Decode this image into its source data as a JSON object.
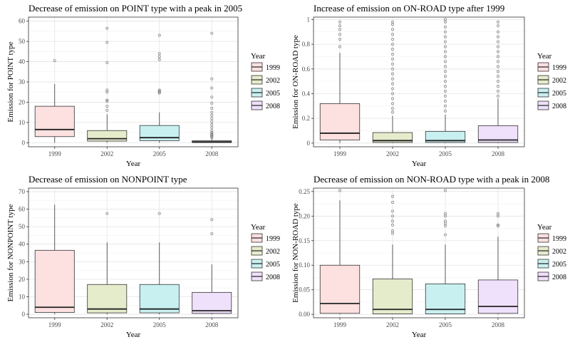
{
  "chart_data": [
    {
      "type": "box",
      "title": "Decrease of emission on POINT type with a peak in 2005",
      "xlabel": "Year",
      "ylabel": "Emission for POINT type",
      "categories": [
        "1999",
        "2002",
        "2005",
        "2008"
      ],
      "ylim": [
        -2,
        62
      ],
      "yticks": [
        0,
        10,
        20,
        30,
        40,
        50,
        60
      ],
      "boxes": [
        {
          "q1": 3,
          "median": 6.5,
          "q3": 18,
          "lower": 0,
          "upper": 29,
          "outliers": [
            40.5
          ]
        },
        {
          "q1": 0.8,
          "median": 2,
          "q3": 6,
          "lower": 0,
          "upper": 14,
          "outliers": [
            16,
            18,
            20.5,
            21,
            25,
            26,
            39.5,
            49.5,
            56.5
          ]
        },
        {
          "q1": 1,
          "median": 2.5,
          "q3": 8.5,
          "lower": 0,
          "upper": 15,
          "outliers": [
            24.5,
            25,
            25.5,
            26,
            41,
            42.5,
            44,
            53
          ]
        },
        {
          "q1": 0.1,
          "median": 0.4,
          "q3": 1,
          "lower": 0,
          "upper": 2,
          "outliers": [
            2.5,
            3,
            3.5,
            4,
            4.5,
            5,
            6,
            7.5,
            9,
            10.5,
            12,
            13.5,
            15,
            17,
            19.5,
            22.5,
            27,
            31.5,
            54
          ]
        }
      ],
      "legend": {
        "title": "Year",
        "entries": [
          "1999",
          "2002",
          "2005",
          "2008"
        ],
        "position": "right"
      },
      "colors": [
        "#fde0e0",
        "#e5eccb",
        "#c9f0f0",
        "#efe0fb"
      ]
    },
    {
      "type": "box",
      "title": "Increase of emission on ON-ROAD type after 1999",
      "xlabel": "Year",
      "ylabel": "Emission for ON-ROAD type",
      "categories": [
        "1999",
        "2002",
        "2005",
        "2008"
      ],
      "ylim": [
        -0.03,
        1.02
      ],
      "yticks": [
        0.0,
        0.2,
        0.4,
        0.6,
        0.8,
        1.0
      ],
      "boxes": [
        {
          "q1": 0.025,
          "median": 0.08,
          "q3": 0.32,
          "lower": 0,
          "upper": 0.73,
          "outliers": [
            0.78,
            0.84,
            0.88,
            0.92,
            0.95,
            0.98
          ]
        },
        {
          "q1": 0.005,
          "median": 0.02,
          "q3": 0.085,
          "lower": 0,
          "upper": 0.22,
          "outliers": [
            0.25,
            0.28,
            0.32,
            0.36,
            0.4,
            0.44,
            0.48,
            0.52,
            0.56,
            0.6,
            0.64,
            0.68,
            0.72,
            0.76,
            0.8,
            0.84,
            0.88,
            0.92,
            0.96,
            0.98
          ]
        },
        {
          "q1": 0.005,
          "median": 0.02,
          "q3": 0.095,
          "lower": 0,
          "upper": 0.23,
          "outliers": [
            0.26,
            0.3,
            0.34,
            0.38,
            0.42,
            0.46,
            0.5,
            0.54,
            0.58,
            0.62,
            0.66,
            0.7,
            0.74,
            0.78,
            0.82,
            0.86,
            0.9,
            0.94,
            0.98,
            1.0
          ]
        },
        {
          "q1": 0.005,
          "median": 0.025,
          "q3": 0.14,
          "lower": 0,
          "upper": 0.36,
          "outliers": [
            0.38,
            0.42,
            0.46,
            0.5,
            0.54,
            0.58,
            0.62,
            0.66,
            0.7,
            0.74,
            0.78,
            0.82,
            0.86,
            0.9,
            0.95,
            0.98
          ]
        }
      ],
      "legend": {
        "title": "Year",
        "entries": [
          "1999",
          "2002",
          "2005",
          "2008"
        ],
        "position": "right"
      },
      "colors": [
        "#fde0e0",
        "#e5eccb",
        "#c9f0f0",
        "#efe0fb"
      ]
    },
    {
      "type": "box",
      "title": "Decrease of emission on NONPOINT type",
      "xlabel": "Year",
      "ylabel": "Emission for NONPOINT type",
      "categories": [
        "1999",
        "2002",
        "2005",
        "2008"
      ],
      "ylim": [
        -2,
        72
      ],
      "yticks": [
        0,
        10,
        20,
        30,
        40,
        50,
        60,
        70
      ],
      "boxes": [
        {
          "q1": 1,
          "median": 4,
          "q3": 36.5,
          "lower": 0,
          "upper": 62.5,
          "outliers": []
        },
        {
          "q1": 0.8,
          "median": 3,
          "q3": 17,
          "lower": 0,
          "upper": 41,
          "outliers": [
            57.5
          ]
        },
        {
          "q1": 0.8,
          "median": 3,
          "q3": 17,
          "lower": 0,
          "upper": 41,
          "outliers": [
            57.5
          ]
        },
        {
          "q1": 0.5,
          "median": 2,
          "q3": 12.5,
          "lower": 0,
          "upper": 28.5,
          "outliers": [
            46,
            54
          ]
        }
      ],
      "legend": {
        "title": "Year",
        "entries": [
          "1999",
          "2002",
          "2005",
          "2008"
        ],
        "position": "right"
      },
      "colors": [
        "#fde0e0",
        "#e5eccb",
        "#c9f0f0",
        "#efe0fb"
      ]
    },
    {
      "type": "box",
      "title": "Decrease of emission on NON-ROAD type with a peak in 2008",
      "xlabel": "Year",
      "ylabel": "Emission for NON-ROAD type",
      "categories": [
        "1999",
        "2002",
        "2005",
        "2008"
      ],
      "ylim": [
        -0.007,
        0.257
      ],
      "yticks": [
        0.0,
        0.05,
        0.1,
        0.15,
        0.2,
        0.25
      ],
      "yticklabels": [
        "0.00",
        "0.05",
        "0.10",
        "0.15",
        "0.20",
        "0.25"
      ],
      "boxes": [
        {
          "q1": 0.002,
          "median": 0.022,
          "q3": 0.1,
          "lower": 0,
          "upper": 0.232,
          "outliers": [
            0.252
          ]
        },
        {
          "q1": 0.001,
          "median": 0.01,
          "q3": 0.072,
          "lower": 0,
          "upper": 0.142,
          "outliers": [
            0.165,
            0.17,
            0.182,
            0.19,
            0.2,
            0.21,
            0.228,
            0.24
          ]
        },
        {
          "q1": 0.001,
          "median": 0.01,
          "q3": 0.062,
          "lower": 0,
          "upper": 0.142,
          "outliers": [
            0.162,
            0.18,
            0.185,
            0.19,
            0.2,
            0.205,
            0.252
          ]
        },
        {
          "q1": 0.002,
          "median": 0.016,
          "q3": 0.07,
          "lower": 0,
          "upper": 0.158,
          "outliers": [
            0.18,
            0.182,
            0.2,
            0.205
          ]
        }
      ],
      "legend": {
        "title": "Year",
        "entries": [
          "1999",
          "2002",
          "2005",
          "2008"
        ],
        "position": "right"
      },
      "colors": [
        "#fde0e0",
        "#e5eccb",
        "#c9f0f0",
        "#efe0fb"
      ]
    }
  ]
}
